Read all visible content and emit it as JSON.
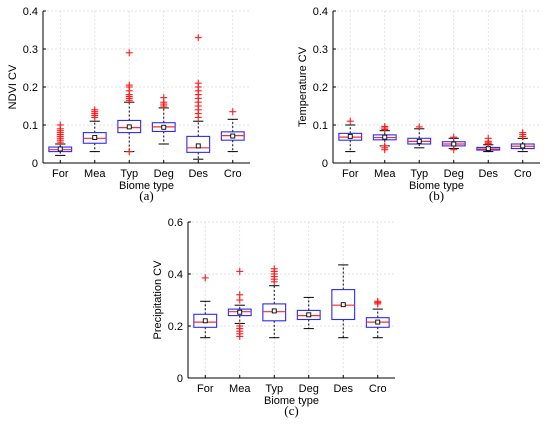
{
  "chart_data": [
    {
      "type": "box",
      "panel_label": "(a)",
      "xlabel": "Biome type",
      "ylabel": "NDVI CV",
      "ylim": [
        0,
        0.4
      ],
      "yticks": [
        "0",
        "0.1",
        "0.2",
        "0.3",
        "0.4"
      ],
      "yticks_values": [
        0,
        0.1,
        0.2,
        0.3,
        0.4
      ],
      "grid": true,
      "categories": [
        "For",
        "Mea",
        "Typ",
        "Deg",
        "Des",
        "Cro"
      ],
      "boxes": [
        {
          "whisker_low": 0.02,
          "q1": 0.03,
          "median": 0.035,
          "q3": 0.042,
          "whisker_high": 0.05,
          "mean": 0.037,
          "outliers": [
            0.055,
            0.06,
            0.065,
            0.07,
            0.075,
            0.08,
            0.085,
            0.09,
            0.1
          ]
        },
        {
          "whisker_low": 0.03,
          "q1": 0.052,
          "median": 0.065,
          "q3": 0.08,
          "whisker_high": 0.11,
          "mean": 0.067,
          "outliers": [
            0.12,
            0.125,
            0.13,
            0.135,
            0.14
          ]
        },
        {
          "whisker_low": 0.03,
          "q1": 0.08,
          "median": 0.093,
          "q3": 0.112,
          "whisker_high": 0.16,
          "mean": 0.095,
          "outliers": [
            0.03,
            0.165,
            0.17,
            0.175,
            0.18,
            0.19,
            0.2,
            0.205,
            0.29
          ]
        },
        {
          "whisker_low": 0.05,
          "q1": 0.083,
          "median": 0.095,
          "q3": 0.106,
          "whisker_high": 0.145,
          "mean": 0.094,
          "outliers": [
            0.15,
            0.155,
            0.16,
            0.172
          ]
        },
        {
          "whisker_low": 0.01,
          "q1": 0.028,
          "median": 0.04,
          "q3": 0.07,
          "whisker_high": 0.11,
          "mean": 0.045,
          "outliers": [
            0.12,
            0.13,
            0.14,
            0.15,
            0.16,
            0.17,
            0.18,
            0.19,
            0.2,
            0.21,
            0.33
          ]
        },
        {
          "whisker_low": 0.03,
          "q1": 0.06,
          "median": 0.072,
          "q3": 0.082,
          "whisker_high": 0.115,
          "mean": 0.071,
          "outliers": [
            0.135
          ]
        }
      ]
    },
    {
      "type": "box",
      "panel_label": "(b)",
      "xlabel": "Biome type",
      "ylabel": "Temperature CV",
      "ylim": [
        0,
        0.4
      ],
      "yticks": [
        "0",
        "0.1",
        "0.2",
        "0.3",
        "0.4"
      ],
      "yticks_values": [
        0,
        0.1,
        0.2,
        0.3,
        0.4
      ],
      "grid": true,
      "categories": [
        "For",
        "Mea",
        "Typ",
        "Deg",
        "Des",
        "Cro"
      ],
      "boxes": [
        {
          "whisker_low": 0.03,
          "q1": 0.06,
          "median": 0.068,
          "q3": 0.078,
          "whisker_high": 0.1,
          "mean": 0.07,
          "outliers": [
            0.11
          ]
        },
        {
          "whisker_low": 0.045,
          "q1": 0.061,
          "median": 0.067,
          "q3": 0.074,
          "whisker_high": 0.085,
          "mean": 0.068,
          "outliers": [
            0.035,
            0.04,
            0.045,
            0.088,
            0.092,
            0.096
          ]
        },
        {
          "whisker_low": 0.04,
          "q1": 0.05,
          "median": 0.057,
          "q3": 0.065,
          "whisker_high": 0.09,
          "mean": 0.057,
          "outliers": [
            0.095
          ]
        },
        {
          "whisker_low": 0.038,
          "q1": 0.045,
          "median": 0.05,
          "q3": 0.056,
          "whisker_high": 0.065,
          "mean": 0.05,
          "outliers": [
            0.035,
            0.068
          ]
        },
        {
          "whisker_low": 0.03,
          "q1": 0.034,
          "median": 0.037,
          "q3": 0.041,
          "whisker_high": 0.048,
          "mean": 0.038,
          "outliers": [
            0.05,
            0.053,
            0.057,
            0.065
          ]
        },
        {
          "whisker_low": 0.03,
          "q1": 0.038,
          "median": 0.044,
          "q3": 0.05,
          "whisker_high": 0.065,
          "mean": 0.045,
          "outliers": [
            0.07,
            0.075,
            0.08
          ]
        }
      ]
    },
    {
      "type": "box",
      "panel_label": "(c)",
      "xlabel": "Biome type",
      "ylabel": "Precipitation CV",
      "ylim": [
        0,
        0.6
      ],
      "yticks": [
        "0",
        "0.2",
        "0.4",
        "0.6"
      ],
      "yticks_values": [
        0,
        0.2,
        0.4,
        0.6
      ],
      "grid": true,
      "categories": [
        "For",
        "Mea",
        "Typ",
        "Deg",
        "Des",
        "Cro"
      ],
      "boxes": [
        {
          "whisker_low": 0.155,
          "q1": 0.195,
          "median": 0.215,
          "q3": 0.245,
          "whisker_high": 0.295,
          "mean": 0.22,
          "outliers": [
            0.385
          ]
        },
        {
          "whisker_low": 0.21,
          "q1": 0.24,
          "median": 0.255,
          "q3": 0.265,
          "whisker_high": 0.28,
          "mean": 0.253,
          "outliers": [
            0.16,
            0.17,
            0.18,
            0.19,
            0.2,
            0.3,
            0.32,
            0.41
          ]
        },
        {
          "whisker_low": 0.155,
          "q1": 0.22,
          "median": 0.255,
          "q3": 0.285,
          "whisker_high": 0.355,
          "mean": 0.258,
          "outliers": [
            0.37,
            0.38,
            0.39,
            0.4,
            0.41,
            0.42
          ]
        },
        {
          "whisker_low": 0.19,
          "q1": 0.225,
          "median": 0.24,
          "q3": 0.26,
          "whisker_high": 0.31,
          "mean": 0.243,
          "outliers": []
        },
        {
          "whisker_low": 0.155,
          "q1": 0.225,
          "median": 0.28,
          "q3": 0.34,
          "whisker_high": 0.435,
          "mean": 0.282,
          "outliers": []
        },
        {
          "whisker_low": 0.155,
          "q1": 0.195,
          "median": 0.215,
          "q3": 0.232,
          "whisker_high": 0.265,
          "mean": 0.215,
          "outliers": [
            0.285,
            0.29,
            0.295
          ]
        }
      ]
    }
  ]
}
